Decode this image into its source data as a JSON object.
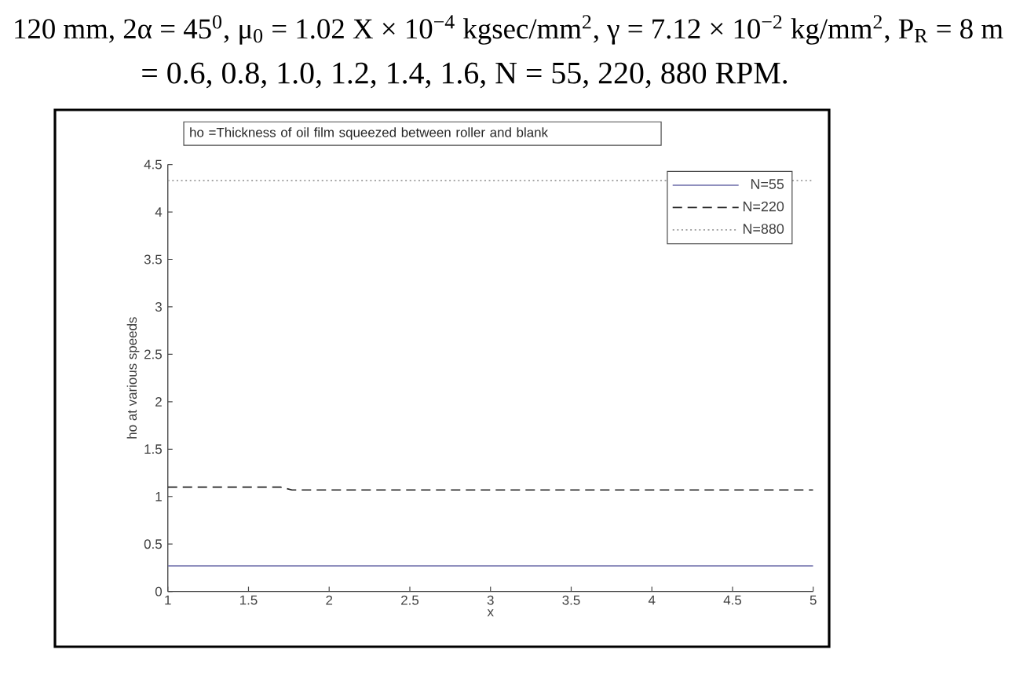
{
  "chart_data": {
    "type": "line",
    "title": "ho =Thickness of oil film squeezed between roller and blank",
    "xlabel": "x",
    "ylabel": "ho at various speeds",
    "annotations": [
      "120 mm, 2α = 45$^{0}$, μ$_{0}$ = 1.02 X × 10$^{−4}$ kgsec/mm$^{2}$, γ = 7.12 × 10$^{−2}$ kg/mm$^{2}$, P$_{R}$ = 8 m",
      "= 0.6, 0.8, 1.0, 1.2, 1.4, 1.6, N = 55, 220, 880 RPM."
    ],
    "xlim": [
      1,
      5
    ],
    "ylim": [
      0,
      4.5
    ],
    "xticks": [
      1,
      1.5,
      2,
      2.5,
      3,
      3.5,
      4,
      4.5,
      5
    ],
    "yticks": [
      0,
      0.5,
      1,
      1.5,
      2,
      2.5,
      3,
      3.5,
      4,
      4.5
    ],
    "legend": "top right",
    "series": [
      {
        "name": "N=55",
        "color": "#6b6ba8",
        "line_style": "solid",
        "x": [
          1,
          5
        ],
        "values": [
          0.27,
          0.27
        ]
      },
      {
        "name": "N=220",
        "color": "#222222",
        "line_style": "dashed",
        "x": [
          1,
          1.7,
          1.77,
          5
        ],
        "values": [
          1.1,
          1.1,
          1.07,
          1.07
        ]
      },
      {
        "name": "N=880",
        "color": "#9a9a9a",
        "line_style": "dotted",
        "x": [
          1,
          5
        ],
        "values": [
          4.33,
          4.33
        ]
      }
    ]
  }
}
